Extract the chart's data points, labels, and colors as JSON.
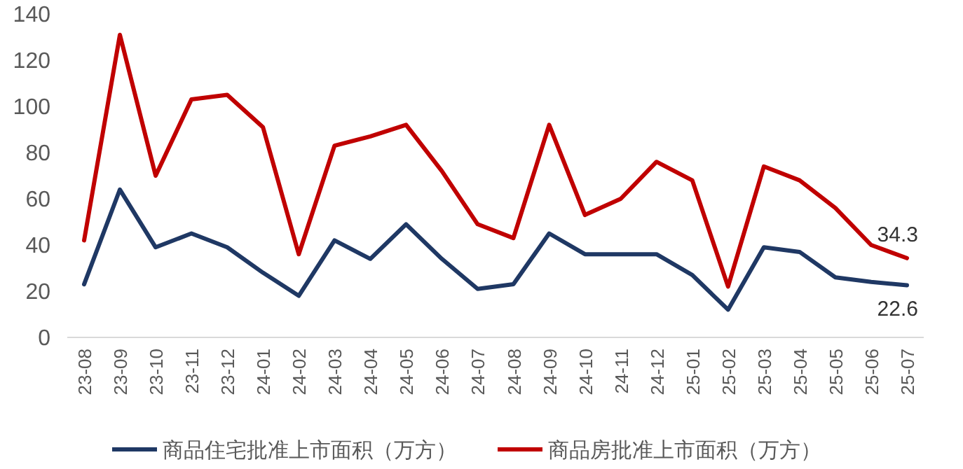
{
  "chart_data": {
    "type": "line",
    "categories": [
      "23-08",
      "23-09",
      "23-10",
      "23-11",
      "23-12",
      "24-01",
      "24-02",
      "24-03",
      "24-04",
      "24-05",
      "24-06",
      "24-07",
      "24-08",
      "24-09",
      "24-10",
      "24-11",
      "24-12",
      "25-01",
      "25-02",
      "25-03",
      "25-04",
      "25-05",
      "25-06",
      "25-07"
    ],
    "series": [
      {
        "name": "商品住宅批准上市面积（万方）",
        "color": "#1f3864",
        "values": [
          23,
          64,
          39,
          45,
          39,
          28,
          18,
          42,
          34,
          49,
          34,
          21,
          23,
          45,
          36,
          36,
          36,
          27,
          12,
          39,
          37,
          26,
          24,
          22.6
        ],
        "value_labels": [
          null,
          null,
          null,
          null,
          null,
          null,
          null,
          null,
          null,
          null,
          null,
          null,
          null,
          null,
          null,
          null,
          null,
          null,
          null,
          null,
          null,
          null,
          null,
          "22.6"
        ]
      },
      {
        "name": "商品房批准上市面积（万方）",
        "color": "#c00000",
        "values": [
          42,
          131,
          70,
          103,
          105,
          91,
          36,
          83,
          87,
          92,
          72,
          49,
          43,
          92,
          53,
          60,
          76,
          68,
          22,
          74,
          68,
          56,
          40,
          34.3
        ],
        "value_labels": [
          null,
          null,
          null,
          null,
          null,
          null,
          null,
          null,
          null,
          null,
          null,
          null,
          null,
          null,
          null,
          null,
          null,
          null,
          null,
          null,
          null,
          null,
          null,
          "34.3"
        ]
      }
    ],
    "ylim": [
      0,
      140
    ],
    "yticks": [
      0,
      20,
      40,
      60,
      80,
      100,
      120,
      140
    ],
    "grid": false,
    "legend": "bottom",
    "marker": "none",
    "line_style": "solid"
  }
}
